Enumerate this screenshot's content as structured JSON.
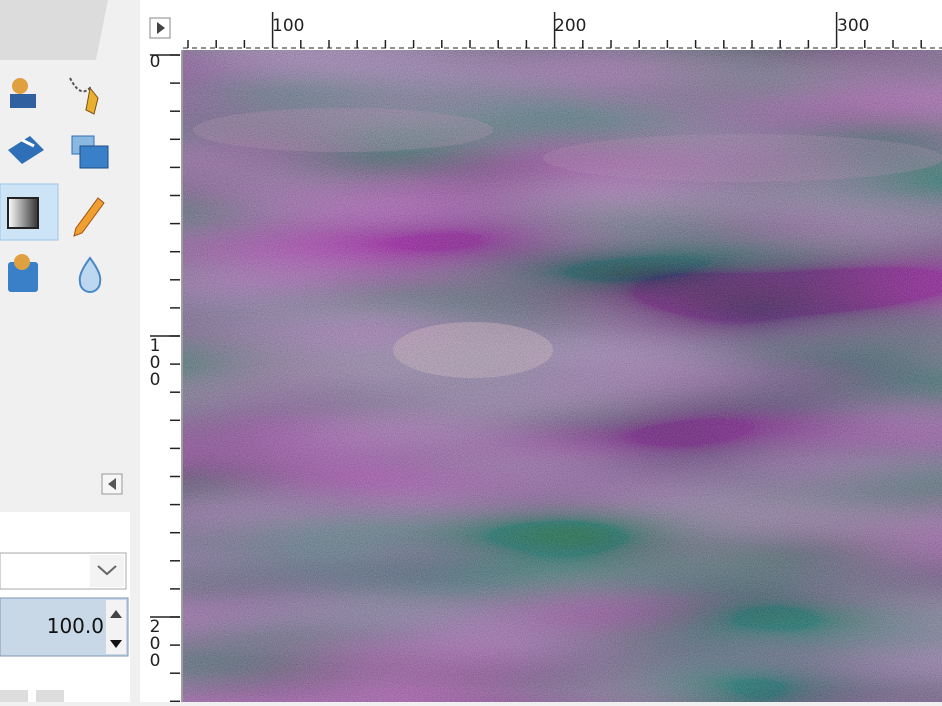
{
  "rulers": {
    "top": [
      "100",
      "200",
      "300"
    ],
    "left": [
      "0",
      "100",
      "200"
    ]
  },
  "tool_options": {
    "opacity_value": "100.0"
  }
}
